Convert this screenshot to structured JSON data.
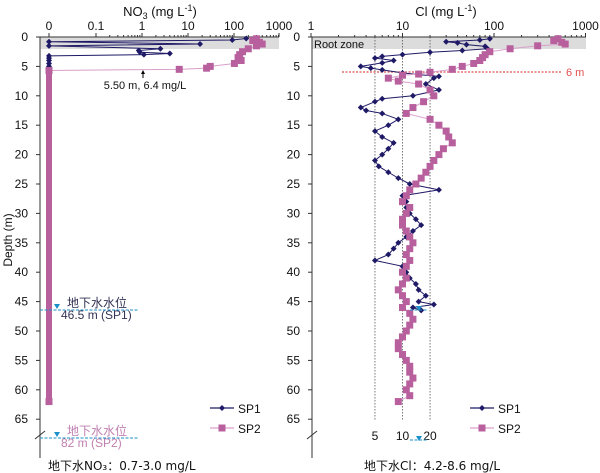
{
  "chart_data": [
    {
      "type": "scatter",
      "title": "NO3 (mg L-1)",
      "title_main": "NO",
      "title_sub": "3",
      "title_unit": " (mg L",
      "title_sup": "-1",
      "title_close": ")",
      "xscale": "log",
      "x_tick_labels": [
        "0",
        "0.1",
        "1",
        "10",
        "100",
        "1000"
      ],
      "ylabel": "Depth (m)",
      "y_tick_labels": [
        "0",
        "5",
        "10",
        "15",
        "20",
        "25",
        "30",
        "35",
        "40",
        "45",
        "50",
        "55",
        "60",
        "65"
      ],
      "ylim": [
        0,
        65
      ],
      "root_zone_depth": 2,
      "annotation": "5.50 m, 6.4 mg/L",
      "annotation_point": {
        "depth": 5.5,
        "value": 6.4
      },
      "water_table": [
        {
          "label": "地下水水位",
          "value_label": "46.5 m (SP1)",
          "depth": 46.5,
          "color": "#333355"
        },
        {
          "label": "地下水水位",
          "value_label": "82 m (SP2)",
          "depth": 82,
          "color": "#c080b0"
        }
      ],
      "footnote": "地下水NO₃：0.7-3.0 mg/L",
      "legend": [
        "SP1",
        "SP2"
      ],
      "legend_position": "bottom-right",
      "series": [
        {
          "name": "SP1",
          "color": "#1f1a66",
          "marker": "diamond",
          "points": [
            [
              0.25,
              180
            ],
            [
              0.5,
              90
            ],
            [
              0.8,
              0
            ],
            [
              1.2,
              18
            ],
            [
              1.5,
              0
            ],
            [
              2.0,
              2.5
            ],
            [
              2.3,
              0.85
            ],
            [
              2.6,
              0.9
            ],
            [
              2.8,
              4
            ],
            [
              3.0,
              1.1
            ],
            [
              3.2,
              0
            ],
            [
              3.6,
              0
            ],
            [
              4.0,
              0
            ],
            [
              4.5,
              0
            ],
            [
              5.0,
              0
            ],
            [
              5.5,
              0
            ]
          ]
        },
        {
          "name": "SP2",
          "color": "#b8609e",
          "marker": "square",
          "points": [
            [
              0.3,
              300
            ],
            [
              0.6,
              250
            ],
            [
              0.9,
              350
            ],
            [
              1.2,
              400
            ],
            [
              1.5,
              300
            ],
            [
              2.0,
              200
            ],
            [
              2.5,
              150
            ],
            [
              3.0,
              130
            ],
            [
              3.5,
              120
            ],
            [
              4.0,
              140
            ],
            [
              4.5,
              100
            ],
            [
              5.0,
              30
            ],
            [
              5.3,
              25
            ],
            [
              5.5,
              6.4
            ],
            [
              5.7,
              0
            ],
            [
              62,
              0
            ]
          ]
        }
      ]
    },
    {
      "type": "scatter",
      "title": "Cl (mg L-1)",
      "title_main": "Cl (mg L",
      "title_sup": "-1",
      "title_close": ")",
      "xscale": "log",
      "x_tick_labels": [
        "1",
        "10",
        "100",
        "1000"
      ],
      "xlim": [
        1,
        1000
      ],
      "ylim": [
        0,
        65
      ],
      "y_tick_labels": [
        "0",
        "5",
        "10",
        "15",
        "20",
        "25",
        "30",
        "35",
        "40",
        "45",
        "50",
        "55",
        "60",
        "65"
      ],
      "root_zone_label": "Root zone",
      "root_zone_depth": 2,
      "reference_line": {
        "label": "6 m",
        "depth": 6,
        "color": "#e05050"
      },
      "vertical_guides": [
        5,
        10,
        20
      ],
      "vertical_guide_labels": [
        "5",
        "10",
        "20"
      ],
      "footnote": "地下水Cl：4.2-8.6 mg/L",
      "legend": [
        "SP1",
        "SP2"
      ],
      "legend_position": "bottom-right",
      "series": [
        {
          "name": "SP1",
          "color": "#1f1a66",
          "marker": "diamond",
          "points": [
            [
              0.3,
              90
            ],
            [
              0.5,
              70
            ],
            [
              0.8,
              30
            ],
            [
              1.0,
              40
            ],
            [
              1.3,
              50
            ],
            [
              1.6,
              80
            ],
            [
              2.0,
              85
            ],
            [
              2.3,
              45
            ],
            [
              2.6,
              20
            ],
            [
              3.0,
              10
            ],
            [
              3.3,
              6
            ],
            [
              3.6,
              5
            ],
            [
              4.0,
              8
            ],
            [
              4.4,
              6
            ],
            [
              5.0,
              3.5
            ],
            [
              5.3,
              4.5
            ],
            [
              5.6,
              6
            ],
            [
              6.1,
              10
            ],
            [
              6.4,
              15
            ],
            [
              6.7,
              25
            ],
            [
              7.0,
              22
            ],
            [
              8.0,
              18
            ],
            [
              9.0,
              25
            ],
            [
              10.0,
              13
            ],
            [
              10.5,
              6
            ],
            [
              11.0,
              5
            ],
            [
              12.0,
              3.5
            ],
            [
              12.5,
              4
            ],
            [
              13.0,
              6
            ],
            [
              14.0,
              9
            ],
            [
              15.0,
              7
            ],
            [
              16.0,
              5
            ],
            [
              17.0,
              6
            ],
            [
              18.0,
              8
            ],
            [
              19.0,
              7
            ],
            [
              20.0,
              6
            ],
            [
              21.0,
              5
            ],
            [
              22.0,
              5.5
            ],
            [
              23.0,
              7
            ],
            [
              24.0,
              9
            ],
            [
              25.0,
              12
            ],
            [
              26.0,
              25
            ],
            [
              27.0,
              10
            ],
            [
              28.0,
              11
            ],
            [
              29.0,
              11
            ],
            [
              30.0,
              12
            ],
            [
              31.0,
              14
            ],
            [
              32.0,
              16
            ],
            [
              33.0,
              13
            ],
            [
              34.0,
              11
            ],
            [
              35.0,
              9
            ],
            [
              36.0,
              8
            ],
            [
              37.0,
              7
            ],
            [
              38.0,
              5
            ],
            [
              39.0,
              10
            ],
            [
              40.0,
              11
            ],
            [
              41.0,
              12
            ],
            [
              42.0,
              14
            ],
            [
              43.0,
              15
            ],
            [
              44.0,
              18
            ],
            [
              45.0,
              15
            ],
            [
              45.5,
              22
            ],
            [
              46.0,
              13
            ],
            [
              46.5,
              16
            ]
          ]
        },
        {
          "name": "SP2",
          "color": "#b8609e",
          "marker": "square",
          "points": [
            [
              0.3,
              500
            ],
            [
              0.6,
              450
            ],
            [
              0.9,
              550
            ],
            [
              1.2,
              600
            ],
            [
              1.5,
              300
            ],
            [
              2.0,
              150
            ],
            [
              2.5,
              90
            ],
            [
              3.0,
              80
            ],
            [
              3.5,
              75
            ],
            [
              4.0,
              70
            ],
            [
              4.5,
              60
            ],
            [
              5.0,
              45
            ],
            [
              5.5,
              35
            ],
            [
              6.0,
              20
            ],
            [
              6.3,
              15
            ],
            [
              6.5,
              10
            ],
            [
              7.0,
              7
            ],
            [
              7.5,
              9
            ],
            [
              8.0,
              15
            ],
            [
              9.0,
              20
            ],
            [
              10.0,
              22
            ],
            [
              11.0,
              17
            ],
            [
              12.0,
              13
            ],
            [
              13.0,
              11
            ],
            [
              14.0,
              20
            ],
            [
              15.0,
              25
            ],
            [
              16.0,
              30
            ],
            [
              17.0,
              32
            ],
            [
              18.0,
              35
            ],
            [
              19.0,
              28
            ],
            [
              20.0,
              25
            ],
            [
              21.0,
              22
            ],
            [
              22.0,
              20
            ],
            [
              23.0,
              18
            ],
            [
              24.0,
              16
            ],
            [
              25.0,
              14
            ],
            [
              26.0,
              12
            ],
            [
              27.0,
              11
            ],
            [
              28.0,
              10
            ],
            [
              29.0,
              12
            ],
            [
              30.0,
              11
            ],
            [
              31.0,
              10
            ],
            [
              32.0,
              10
            ],
            [
              33.0,
              11
            ],
            [
              34.0,
              12
            ],
            [
              35.0,
              13
            ],
            [
              36.0,
              12
            ],
            [
              37.0,
              11
            ],
            [
              38.0,
              12
            ],
            [
              39.0,
              11
            ],
            [
              40.0,
              10
            ],
            [
              41.0,
              11
            ],
            [
              42.0,
              10
            ],
            [
              43.0,
              9
            ],
            [
              44.0,
              10
            ],
            [
              45.0,
              11
            ],
            [
              46.0,
              10
            ],
            [
              47.0,
              12
            ],
            [
              48.0,
              13
            ],
            [
              49.0,
              12
            ],
            [
              50.0,
              11
            ],
            [
              51.0,
              10
            ],
            [
              52.0,
              9
            ],
            [
              53.0,
              9
            ],
            [
              54.0,
              10
            ],
            [
              55.0,
              11
            ],
            [
              56.0,
              12
            ],
            [
              57.0,
              12
            ],
            [
              58.0,
              13
            ],
            [
              59.0,
              12
            ],
            [
              60.0,
              11
            ],
            [
              61.0,
              12
            ],
            [
              62.0,
              9
            ]
          ]
        }
      ]
    }
  ]
}
